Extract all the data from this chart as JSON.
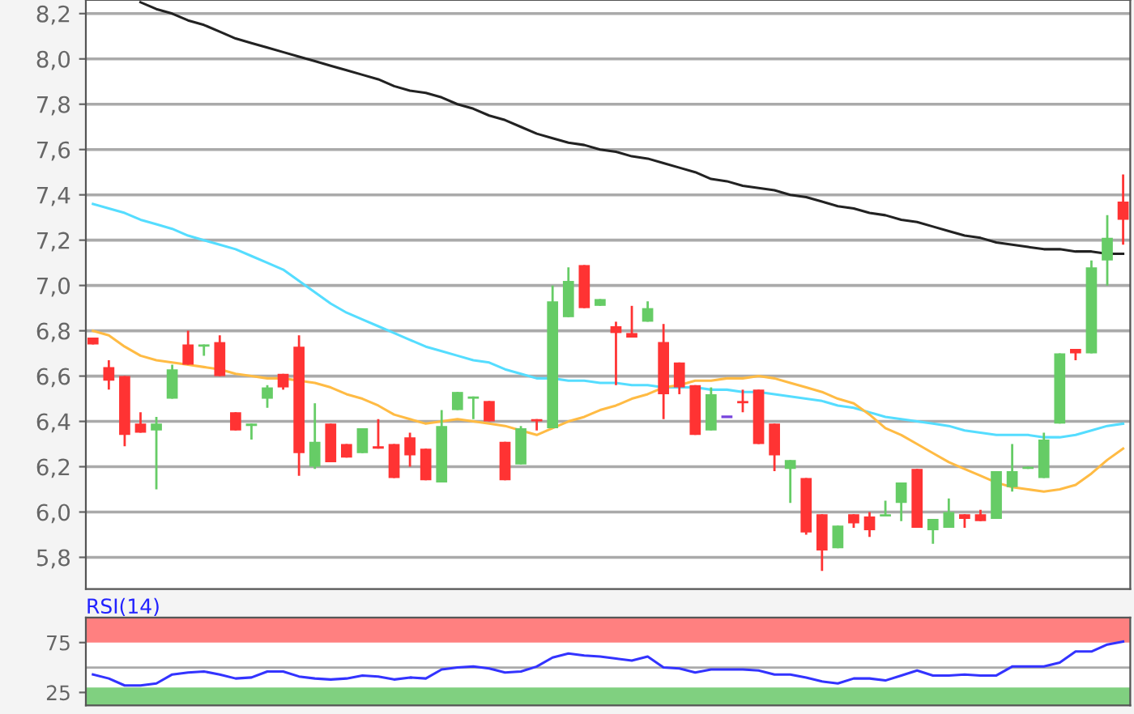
{
  "chart_data": [
    {
      "type": "candlestick",
      "categories": [
        null,
        null,
        null,
        null,
        null,
        null,
        null,
        null,
        null,
        null,
        null,
        null,
        null,
        null,
        null,
        null,
        null,
        null,
        null,
        null,
        null,
        null,
        null,
        null,
        null,
        null,
        null,
        null,
        null,
        null,
        null,
        null,
        null,
        null,
        null,
        null,
        null,
        null,
        null,
        null,
        null,
        null,
        null,
        null,
        null,
        null,
        null,
        null,
        null,
        null,
        null,
        null,
        null,
        null,
        null,
        null,
        null,
        null,
        null,
        null,
        null,
        null,
        null,
        null,
        null,
        null
      ],
      "ohlc": [
        [
          6.77,
          6.77,
          6.74,
          6.74
        ],
        [
          6.64,
          6.67,
          6.54,
          6.58
        ],
        [
          6.6,
          6.6,
          6.29,
          6.34
        ],
        [
          6.39,
          6.44,
          6.35,
          6.35
        ],
        [
          6.36,
          6.42,
          6.1,
          6.39
        ],
        [
          6.5,
          6.65,
          6.5,
          6.63
        ],
        [
          6.74,
          6.8,
          6.65,
          6.65
        ],
        [
          6.73,
          6.74,
          6.69,
          6.74
        ],
        [
          6.75,
          6.78,
          6.6,
          6.6
        ],
        [
          6.44,
          6.44,
          6.36,
          6.36
        ],
        [
          6.38,
          6.39,
          6.32,
          6.39
        ],
        [
          6.5,
          6.56,
          6.46,
          6.55
        ],
        [
          6.61,
          6.61,
          6.54,
          6.55
        ],
        [
          6.73,
          6.78,
          6.16,
          6.26
        ],
        [
          6.2,
          6.48,
          6.19,
          6.31
        ],
        [
          6.39,
          6.39,
          6.22,
          6.22
        ],
        [
          6.3,
          6.3,
          6.24,
          6.24
        ],
        [
          6.26,
          6.37,
          6.26,
          6.37
        ],
        [
          6.29,
          6.41,
          6.28,
          6.28
        ],
        [
          6.3,
          6.3,
          6.15,
          6.15
        ],
        [
          6.33,
          6.35,
          6.2,
          6.25
        ],
        [
          6.28,
          6.28,
          6.14,
          6.14
        ],
        [
          6.13,
          6.45,
          6.13,
          6.38
        ],
        [
          6.45,
          6.53,
          6.45,
          6.53
        ],
        [
          6.5,
          6.51,
          6.41,
          6.51
        ],
        [
          6.49,
          6.49,
          6.4,
          6.4
        ],
        [
          6.31,
          6.31,
          6.14,
          6.14
        ],
        [
          6.21,
          6.38,
          6.21,
          6.37
        ],
        [
          6.41,
          6.41,
          6.36,
          6.4
        ],
        [
          6.37,
          7.0,
          6.37,
          6.93
        ],
        [
          6.86,
          7.08,
          6.86,
          7.02
        ],
        [
          7.09,
          7.09,
          6.9,
          6.9
        ],
        [
          6.91,
          6.94,
          6.91,
          6.94
        ],
        [
          6.82,
          6.84,
          6.56,
          6.79
        ],
        [
          6.79,
          6.91,
          6.77,
          6.77
        ],
        [
          6.84,
          6.93,
          6.84,
          6.9
        ],
        [
          6.75,
          6.83,
          6.41,
          6.52
        ],
        [
          6.66,
          6.66,
          6.52,
          6.55
        ],
        [
          6.56,
          6.56,
          6.34,
          6.34
        ],
        [
          6.36,
          6.55,
          6.36,
          6.52
        ],
        [
          6.42,
          6.42,
          6.42,
          6.42
        ],
        [
          6.49,
          6.54,
          6.44,
          6.48
        ],
        [
          6.54,
          6.54,
          6.3,
          6.3
        ],
        [
          6.39,
          6.39,
          6.18,
          6.25
        ],
        [
          6.19,
          6.23,
          6.04,
          6.23
        ],
        [
          6.15,
          6.15,
          5.9,
          5.91
        ],
        [
          5.99,
          5.99,
          5.74,
          5.83
        ],
        [
          5.84,
          5.94,
          5.84,
          5.94
        ],
        [
          5.99,
          5.99,
          5.93,
          5.95
        ],
        [
          5.98,
          6.0,
          5.89,
          5.92
        ],
        [
          5.98,
          6.05,
          5.98,
          5.99
        ],
        [
          6.04,
          6.13,
          5.96,
          6.13
        ],
        [
          6.19,
          6.19,
          5.93,
          5.93
        ],
        [
          5.92,
          5.97,
          5.86,
          5.97
        ],
        [
          5.93,
          6.06,
          5.93,
          6.0
        ],
        [
          5.99,
          5.99,
          5.93,
          5.97
        ],
        [
          5.99,
          6.01,
          5.96,
          5.96
        ],
        [
          5.97,
          6.18,
          5.97,
          6.18
        ],
        [
          6.11,
          6.3,
          6.09,
          6.18
        ],
        [
          6.19,
          6.2,
          6.19,
          6.2
        ],
        [
          6.15,
          6.35,
          6.15,
          6.32
        ],
        [
          6.39,
          6.7,
          6.39,
          6.7
        ],
        [
          6.72,
          6.72,
          6.67,
          6.7
        ],
        [
          6.7,
          7.11,
          6.7,
          7.08
        ],
        [
          7.11,
          7.31,
          7.0,
          7.21
        ],
        [
          7.37,
          7.49,
          7.18,
          7.29
        ]
      ],
      "colors": [
        "#ff3333",
        "#ff3333",
        "#ff3333",
        "#ff3333",
        "#66cc66",
        "#66cc66",
        "#ff3333",
        "#66cc66",
        "#ff3333",
        "#ff3333",
        "#66cc66",
        "#66cc66",
        "#ff3333",
        "#ff3333",
        "#66cc66",
        "#ff3333",
        "#ff3333",
        "#66cc66",
        "#ff3333",
        "#ff3333",
        "#ff3333",
        "#ff3333",
        "#66cc66",
        "#66cc66",
        "#66cc66",
        "#ff3333",
        "#ff3333",
        "#66cc66",
        "#ff3333",
        "#66cc66",
        "#66cc66",
        "#ff3333",
        "#66cc66",
        "#ff3333",
        "#ff3333",
        "#66cc66",
        "#ff3333",
        "#ff3333",
        "#ff3333",
        "#66cc66",
        "#7744dd",
        "#ff3333",
        "#ff3333",
        "#ff3333",
        "#66cc66",
        "#ff3333",
        "#ff3333",
        "#66cc66",
        "#ff3333",
        "#ff3333",
        "#66cc66",
        "#66cc66",
        "#ff3333",
        "#66cc66",
        "#66cc66",
        "#ff3333",
        "#ff3333",
        "#66cc66",
        "#66cc66",
        "#66cc66",
        "#66cc66",
        "#66cc66",
        "#ff3333",
        "#66cc66",
        "#66cc66",
        "#ff3333"
      ],
      "series": [
        {
          "type": "line",
          "color": "#222222",
          "values": [
            null,
            null,
            null,
            8.25,
            8.22,
            8.2,
            8.17,
            8.15,
            8.12,
            8.09,
            8.07,
            8.05,
            8.03,
            8.01,
            7.99,
            7.97,
            7.95,
            7.93,
            7.91,
            7.88,
            7.86,
            7.85,
            7.83,
            7.8,
            7.78,
            7.75,
            7.73,
            7.7,
            7.67,
            7.65,
            7.63,
            7.62,
            7.6,
            7.59,
            7.57,
            7.56,
            7.54,
            7.52,
            7.5,
            7.47,
            7.46,
            7.44,
            7.43,
            7.42,
            7.4,
            7.39,
            7.37,
            7.35,
            7.34,
            7.32,
            7.31,
            7.29,
            7.28,
            7.26,
            7.24,
            7.22,
            7.21,
            7.19,
            7.18,
            7.17,
            7.16,
            7.16,
            7.15,
            7.15,
            7.14,
            7.14
          ]
        },
        {
          "type": "line",
          "color": "#55ddff",
          "values": [
            7.36,
            7.34,
            7.32,
            7.29,
            7.27,
            7.25,
            7.22,
            7.2,
            7.18,
            7.16,
            7.13,
            7.1,
            7.07,
            7.02,
            6.97,
            6.92,
            6.88,
            6.85,
            6.82,
            6.79,
            6.76,
            6.73,
            6.71,
            6.69,
            6.67,
            6.66,
            6.63,
            6.61,
            6.59,
            6.59,
            6.58,
            6.58,
            6.57,
            6.57,
            6.56,
            6.56,
            6.55,
            6.55,
            6.55,
            6.54,
            6.54,
            6.53,
            6.53,
            6.52,
            6.51,
            6.5,
            6.49,
            6.47,
            6.46,
            6.44,
            6.42,
            6.41,
            6.4,
            6.39,
            6.38,
            6.36,
            6.35,
            6.34,
            6.34,
            6.34,
            6.33,
            6.33,
            6.34,
            6.36,
            6.38,
            6.39
          ]
        },
        {
          "type": "line",
          "color": "#ffbb44",
          "values": [
            6.8,
            6.78,
            6.73,
            6.69,
            6.67,
            6.66,
            6.65,
            6.64,
            6.63,
            6.61,
            6.6,
            6.59,
            6.59,
            6.58,
            6.57,
            6.55,
            6.52,
            6.5,
            6.47,
            6.43,
            6.41,
            6.39,
            6.4,
            6.41,
            6.4,
            6.39,
            6.38,
            6.36,
            6.34,
            6.37,
            6.4,
            6.42,
            6.45,
            6.47,
            6.5,
            6.52,
            6.55,
            6.56,
            6.58,
            6.58,
            6.59,
            6.59,
            6.6,
            6.59,
            6.57,
            6.55,
            6.53,
            6.5,
            6.48,
            6.43,
            6.37,
            6.34,
            6.3,
            6.26,
            6.22,
            6.19,
            6.16,
            6.13,
            6.11,
            6.1,
            6.09,
            6.1,
            6.12,
            6.17,
            6.23,
            6.28
          ]
        }
      ],
      "ylim": [
        5.66,
        8.26
      ],
      "yticks": [
        {
          "value": 5.8,
          "label": "5,8"
        },
        {
          "value": 6.0,
          "label": "6,0"
        },
        {
          "value": 6.2,
          "label": "6,2"
        },
        {
          "value": 6.4,
          "label": "6,4"
        },
        {
          "value": 6.6,
          "label": "6,6"
        },
        {
          "value": 6.8,
          "label": "6,8"
        },
        {
          "value": 7.0,
          "label": "7,0"
        },
        {
          "value": 7.2,
          "label": "7,2"
        },
        {
          "value": 7.4,
          "label": "7,4"
        },
        {
          "value": 7.6,
          "label": "7,6"
        },
        {
          "value": 7.8,
          "label": "7,8"
        },
        {
          "value": 8.0,
          "label": "8,0"
        },
        {
          "value": 8.2,
          "label": "8,2"
        }
      ],
      "grid": "y",
      "tick_labels": "y"
    },
    {
      "type": "line",
      "title": "RSI(14)",
      "categories": [
        null,
        null,
        null,
        null,
        null,
        null,
        null,
        null,
        null,
        null,
        null,
        null,
        null,
        null,
        null,
        null,
        null,
        null,
        null,
        null,
        null,
        null,
        null,
        null,
        null,
        null,
        null,
        null,
        null,
        null,
        null,
        null,
        null,
        null,
        null,
        null,
        null,
        null,
        null,
        null,
        null,
        null,
        null,
        null,
        null,
        null,
        null,
        null,
        null,
        null,
        null,
        null,
        null,
        null,
        null,
        null,
        null,
        null,
        null,
        null,
        null,
        null,
        null,
        null,
        null,
        null
      ],
      "series": [
        {
          "color": "#3333ff",
          "values": [
            43,
            39,
            32,
            32,
            34,
            43,
            45,
            46,
            43,
            39,
            40,
            46,
            46,
            41,
            39,
            38,
            39,
            42,
            41,
            38,
            40,
            39,
            48,
            50,
            51,
            49,
            45,
            46,
            51,
            60,
            64,
            62,
            61,
            59,
            57,
            61,
            50,
            49,
            45,
            48,
            48,
            48,
            47,
            43,
            43,
            40,
            36,
            34,
            39,
            39,
            37,
            42,
            47,
            42,
            42,
            43,
            42,
            42,
            51,
            51,
            51,
            55,
            66,
            66,
            73,
            76
          ]
        }
      ],
      "ylim": [
        12,
        100
      ],
      "yticks": [
        25,
        75
      ],
      "bands": [
        {
          "axis": "y",
          "from": 75,
          "to": 100,
          "color": "#ff8080"
        },
        {
          "axis": "y",
          "from": 12,
          "to": 30,
          "color": "#80d080"
        }
      ],
      "ref_lines": [
        {
          "axis": "y",
          "value": 50,
          "color": "#aaaaaa"
        }
      ],
      "grid": false,
      "tick_labels": "y"
    }
  ]
}
